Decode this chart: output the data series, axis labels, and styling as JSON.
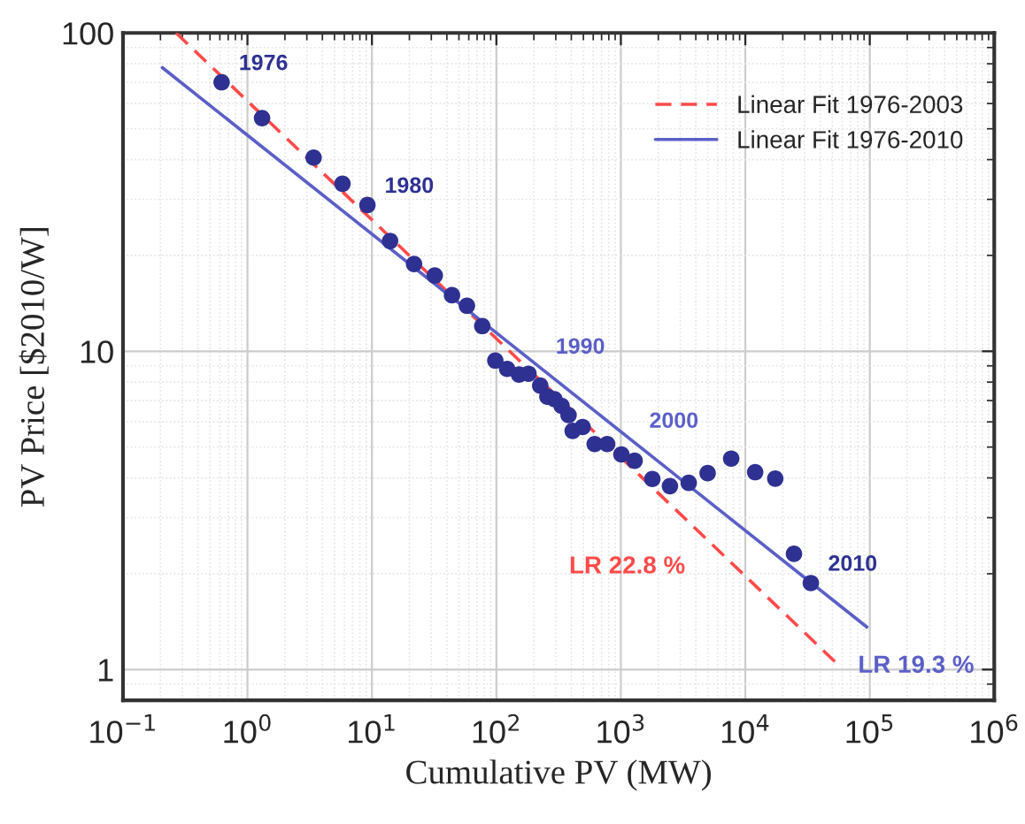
{
  "chart_data": {
    "type": "scatter",
    "xlabel": "Cumulative PV (MW)",
    "ylabel": "PV Price [$2010/W]",
    "log": "xy",
    "grid": true,
    "legend": "top right",
    "xlim": [
      0.1,
      1000000
    ],
    "ylim": [
      0.8,
      100
    ],
    "xticks": [
      {
        "value": 0.1,
        "label": "10$^{−1}$"
      },
      {
        "value": 1,
        "label": "10$^{0}$"
      },
      {
        "value": 10,
        "label": "10$^{1}$"
      },
      {
        "value": 100,
        "label": "10$^{2}$"
      },
      {
        "value": 1000,
        "label": "10$^{3}$"
      },
      {
        "value": 10000,
        "label": "10$^{4}$"
      },
      {
        "value": 100000,
        "label": "10$^{5}$"
      },
      {
        "value": 1000000,
        "label": "10$^{6}$"
      }
    ],
    "yticks": [
      1,
      10,
      100
    ],
    "series": [
      {
        "marker": "circle",
        "color": "#2e3192",
        "x": [
          0.62,
          1.31,
          3.4,
          5.8,
          9.2,
          14,
          21.8,
          32,
          44,
          58,
          77,
          98,
          122,
          152,
          181,
          225,
          257,
          293,
          334,
          380,
          410,
          493,
          616,
          777,
          1010,
          1290,
          1790,
          2480,
          3510,
          4980,
          7700,
          12000,
          17400,
          24600,
          33600
        ],
        "values": [
          70,
          54,
          40.6,
          33.6,
          28.8,
          22.2,
          18.8,
          17.3,
          15,
          13.9,
          12,
          9.35,
          8.8,
          8.45,
          8.5,
          7.8,
          7.2,
          7.07,
          6.74,
          6.3,
          5.62,
          5.78,
          5.11,
          5.11,
          4.74,
          4.53,
          3.97,
          3.77,
          3.86,
          4.14,
          4.6,
          4.17,
          3.98,
          2.31,
          1.87
        ]
      },
      {
        "type": "line",
        "name": "Linear Fit 1976-2003",
        "color": "#ff4a4a",
        "line_style": "dashed",
        "x": [
          0.267,
          53700
        ],
        "values": [
          100,
          1.05
        ]
      },
      {
        "type": "line",
        "name": "Linear Fit 1976-2010",
        "color": "#5b5fc7",
        "line_style": "solid",
        "x": [
          0.207,
          94800
        ],
        "values": [
          77.8,
          1.36
        ]
      }
    ],
    "annotations": [
      {
        "text": "1976",
        "x": 0.62,
        "y": 70
      },
      {
        "text": "1980",
        "x": 9.2,
        "y": 28.8
      },
      {
        "text": "1990",
        "x": 218,
        "y": 9.0
      },
      {
        "text": "2000",
        "x": 1230,
        "y": 5.26
      },
      {
        "text": "2010",
        "x": 33600,
        "y": 1.87
      },
      "LR 22.8 %",
      "LR 19.3 %"
    ]
  }
}
